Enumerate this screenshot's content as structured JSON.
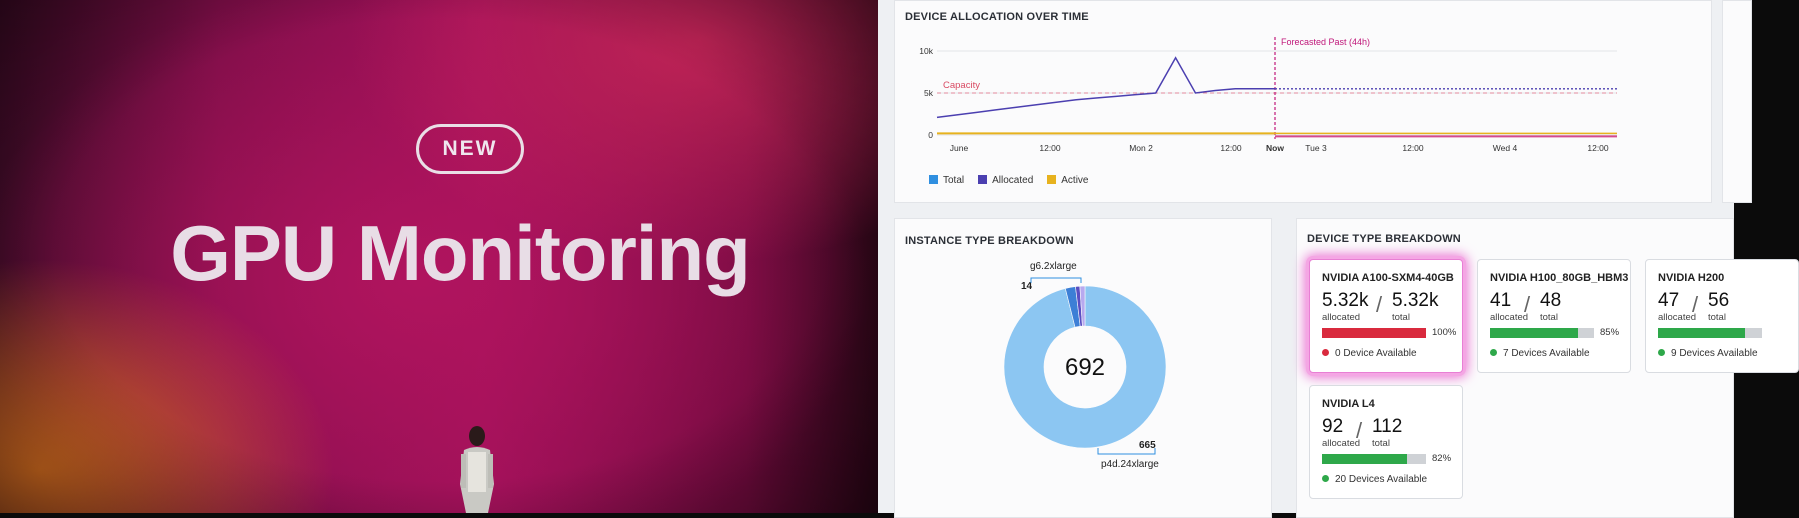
{
  "stage": {
    "badge": "NEW",
    "title": "GPU Monitoring"
  },
  "allocation_panel": {
    "title": "DEVICE ALLOCATION OVER TIME",
    "capacity_label": "Capacity",
    "forecast_label": "Forecasted Past (44h)",
    "y_ticks": [
      "10k",
      "5k",
      "0"
    ],
    "x_ticks": [
      "June",
      "12:00",
      "Mon 2",
      "12:00",
      "Now",
      "Tue 3",
      "12:00",
      "Wed 4",
      "12:00"
    ],
    "legend": [
      {
        "label": "Total",
        "color": "#2f8fe0"
      },
      {
        "label": "Allocated",
        "color": "#4b3fb0"
      },
      {
        "label": "Active",
        "color": "#e7b21e"
      }
    ]
  },
  "chart_data": {
    "type": "line",
    "title": "DEVICE ALLOCATION OVER TIME",
    "ylim": [
      0,
      10000
    ],
    "series": [
      {
        "name": "Allocated",
        "values": [
          2100,
          2400,
          2700,
          3000,
          3300,
          3600,
          3900,
          4200,
          4400,
          4600,
          4800,
          5000,
          9200,
          5000,
          5300,
          5500,
          5500,
          5500
        ]
      },
      {
        "name": "Active",
        "values": [
          200,
          200,
          200,
          200,
          200,
          200,
          200,
          200,
          200,
          200,
          200,
          200,
          200,
          200,
          200,
          200,
          200,
          200
        ]
      }
    ],
    "capacity": 5000
  },
  "instance_panel": {
    "title": "INSTANCE TYPE BREAKDOWN",
    "center_value": "692",
    "slices": [
      {
        "name": "p4d.24xlarge",
        "value": 665,
        "value_label": "665",
        "color": "#8cc6f2"
      },
      {
        "name": "g6.2xlarge",
        "value": 14,
        "value_label": "14",
        "color": "#3d7fd6"
      },
      {
        "name": "",
        "value": 6,
        "value_label": "",
        "color": "#5a4ec2"
      },
      {
        "name": "",
        "value": 7,
        "value_label": "",
        "color": "#b7a9ef"
      }
    ]
  },
  "device_panel": {
    "title": "DEVICE TYPE BREAKDOWN",
    "allocated_label": "allocated",
    "total_label": "total",
    "cards": [
      {
        "name": "NVIDIA A100-SXM4-40GB",
        "allocated": "5.32k",
        "total": "5.32k",
        "percent": 100,
        "percent_label": "100%",
        "available": "0 Device Available",
        "bar_color": "#d92a3e",
        "dot_color": "#d92a3e"
      },
      {
        "name": "NVIDIA H100_80GB_HBM3",
        "allocated": "41",
        "total": "48",
        "percent": 85,
        "percent_label": "85%",
        "available": "7 Devices Available",
        "bar_color": "#2ea84a",
        "dot_color": "#2ea84a"
      },
      {
        "name": "NVIDIA H200",
        "allocated": "47",
        "total": "56",
        "percent": 84,
        "percent_label": "",
        "available": "9 Devices Available",
        "bar_color": "#2ea84a",
        "dot_color": "#2ea84a"
      },
      {
        "name": "NVIDIA L4",
        "allocated": "92",
        "total": "112",
        "percent": 82,
        "percent_label": "82%",
        "available": "20 Devices Available",
        "bar_color": "#2ea84a",
        "dot_color": "#2ea84a"
      }
    ]
  }
}
